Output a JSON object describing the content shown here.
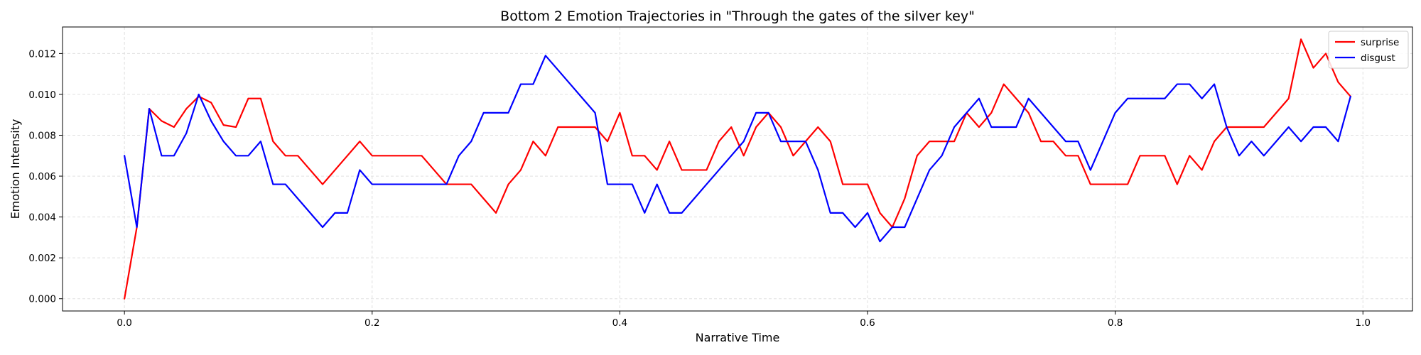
{
  "chart_data": {
    "type": "line",
    "title": "Bottom 2 Emotion Trajectories in \"Through the gates of the silver key\"",
    "xlabel": "Narrative Time",
    "ylabel": "Emotion Intensity",
    "xlim": [
      -0.05,
      1.04
    ],
    "ylim": [
      -0.0006,
      0.0133
    ],
    "xticks": [
      0.0,
      0.2,
      0.4,
      0.6,
      0.8,
      1.0
    ],
    "xtick_labels": [
      "0.0",
      "0.2",
      "0.4",
      "0.6",
      "0.8",
      "1.0"
    ],
    "yticks": [
      0.0,
      0.002,
      0.004,
      0.006,
      0.008,
      0.01,
      0.012
    ],
    "ytick_labels": [
      "0.000",
      "0.002",
      "0.004",
      "0.006",
      "0.008",
      "0.010",
      "0.012"
    ],
    "grid": true,
    "legend_position": "top-right",
    "x": [
      0.0,
      0.01,
      0.02,
      0.03,
      0.04,
      0.05,
      0.06,
      0.07,
      0.08,
      0.09,
      0.1,
      0.11,
      0.12,
      0.13,
      0.14,
      0.15,
      0.16,
      0.17,
      0.18,
      0.19,
      0.2,
      0.21,
      0.22,
      0.23,
      0.24,
      0.25,
      0.26,
      0.27,
      0.28,
      0.29,
      0.3,
      0.31,
      0.32,
      0.33,
      0.34,
      0.35,
      0.36,
      0.37,
      0.38,
      0.39,
      0.4,
      0.41,
      0.42,
      0.43,
      0.44,
      0.45,
      0.46,
      0.47,
      0.48,
      0.49,
      0.5,
      0.51,
      0.52,
      0.53,
      0.54,
      0.55,
      0.56,
      0.57,
      0.58,
      0.59,
      0.6,
      0.61,
      0.62,
      0.63,
      0.64,
      0.65,
      0.66,
      0.67,
      0.68,
      0.69,
      0.7,
      0.71,
      0.72,
      0.73,
      0.74,
      0.75,
      0.76,
      0.77,
      0.78,
      0.79,
      0.8,
      0.81,
      0.82,
      0.83,
      0.84,
      0.85,
      0.86,
      0.87,
      0.88,
      0.89,
      0.9,
      0.91,
      0.92,
      0.93,
      0.94,
      0.95,
      0.96,
      0.97,
      0.98,
      0.99
    ],
    "series": [
      {
        "name": "surprise",
        "color": "#ff0000",
        "values": [
          0.0,
          0.0035,
          0.0093,
          0.0087,
          0.0084,
          0.0093,
          0.0099,
          0.0096,
          0.0085,
          0.0084,
          0.0098,
          0.0098,
          0.0077,
          0.007,
          0.007,
          0.0063,
          0.0056,
          0.0063,
          0.007,
          0.0077,
          0.007,
          0.007,
          0.007,
          0.007,
          0.007,
          0.0063,
          0.0056,
          0.0056,
          0.0056,
          0.0049,
          0.0042,
          0.0056,
          0.0063,
          0.0077,
          0.007,
          0.0084,
          0.0084,
          0.0084,
          0.0084,
          0.0077,
          0.0091,
          0.007,
          0.007,
          0.0063,
          0.0077,
          0.0063,
          0.0063,
          0.0063,
          0.0077,
          0.0084,
          0.007,
          0.0084,
          0.0091,
          0.0084,
          0.007,
          0.0077,
          0.0084,
          0.0077,
          0.0056,
          0.0056,
          0.0056,
          0.0042,
          0.0035,
          0.0049,
          0.007,
          0.0077,
          0.0077,
          0.0077,
          0.0091,
          0.0084,
          0.0091,
          0.0105,
          0.0098,
          0.0091,
          0.0077,
          0.0077,
          0.007,
          0.007,
          0.0056,
          0.0056,
          0.0056,
          0.0056,
          0.007,
          0.007,
          0.007,
          0.0056,
          0.007,
          0.0063,
          0.0077,
          0.0084,
          0.0084,
          0.0084,
          0.0084,
          0.0091,
          0.0098,
          0.0127,
          0.0113,
          0.012,
          0.0106,
          0.0099
        ]
      },
      {
        "name": "disgust",
        "color": "#0000ff",
        "values": [
          0.007,
          0.0035,
          0.0093,
          0.007,
          0.007,
          0.0081,
          0.01,
          0.0087,
          0.0077,
          0.007,
          0.007,
          0.0077,
          0.0056,
          0.0056,
          0.0049,
          0.0042,
          0.0035,
          0.0042,
          0.0042,
          0.0063,
          0.0056,
          0.0056,
          0.0056,
          0.0056,
          0.0056,
          0.0056,
          0.0056,
          0.007,
          0.0077,
          0.0091,
          0.0091,
          0.0091,
          0.0105,
          0.0105,
          0.0119,
          0.0112,
          0.0105,
          0.0098,
          0.0091,
          0.0056,
          0.0056,
          0.0056,
          0.0042,
          0.0056,
          0.0042,
          0.0042,
          0.0049,
          0.0056,
          0.0063,
          0.007,
          0.0077,
          0.0091,
          0.0091,
          0.0077,
          0.0077,
          0.0077,
          0.0063,
          0.0042,
          0.0042,
          0.0035,
          0.0042,
          0.0028,
          0.0035,
          0.0035,
          0.0049,
          0.0063,
          0.007,
          0.0084,
          0.0091,
          0.0098,
          0.0084,
          0.0084,
          0.0084,
          0.0098,
          0.0091,
          0.0084,
          0.0077,
          0.0077,
          0.0063,
          0.0077,
          0.0091,
          0.0098,
          0.0098,
          0.0098,
          0.0098,
          0.0105,
          0.0105,
          0.0098,
          0.0105,
          0.0084,
          0.007,
          0.0077,
          0.007,
          0.0077,
          0.0084,
          0.0077,
          0.0084,
          0.0084,
          0.0077,
          0.0099
        ]
      }
    ]
  }
}
